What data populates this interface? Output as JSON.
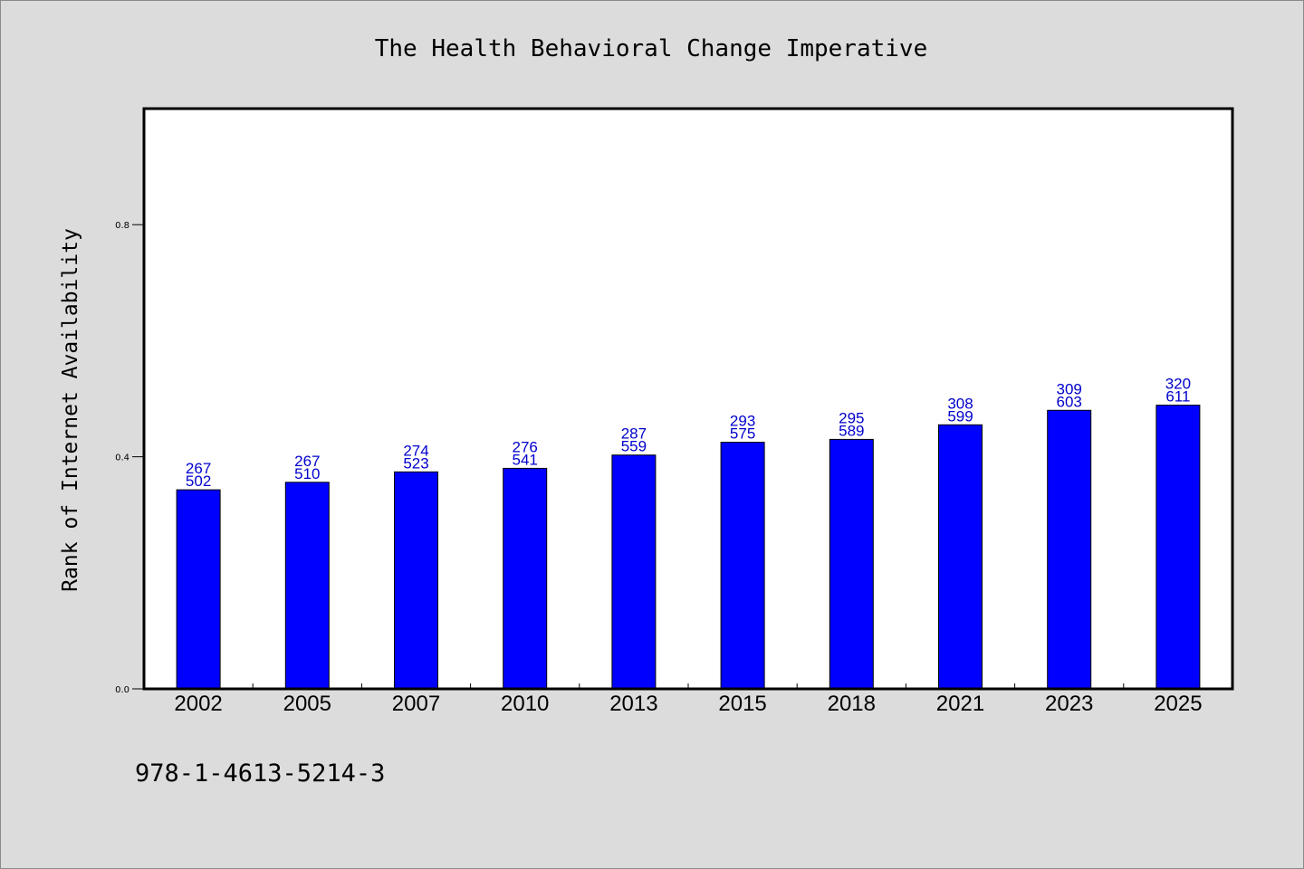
{
  "colors": {
    "background": "#dcdcdc",
    "plot_background": "#ffffff",
    "bar_fill": "#0000ff",
    "data_label": "#0000cc",
    "axis": "#000000"
  },
  "footnote": "978-1-4613-5214-3",
  "chart_data": {
    "type": "bar",
    "title": "The Health Behavioral Change Imperative",
    "xlabel": "",
    "ylabel": "Rank of Internet Availability",
    "ylim": [
      0,
      1.0
    ],
    "yticks": [
      0.0,
      0.4,
      0.8
    ],
    "ytick_labels": [
      "0.0",
      "0.4",
      "0.8"
    ],
    "grid": false,
    "legend": "none",
    "categories": [
      "2002",
      "2005",
      "2007",
      "2010",
      "2013",
      "2015",
      "2018",
      "2021",
      "2023",
      "2025"
    ],
    "values": [
      0.343,
      0.356,
      0.374,
      0.38,
      0.403,
      0.425,
      0.43,
      0.455,
      0.48,
      0.489
    ],
    "data_labels_top": [
      "267",
      "267",
      "274",
      "276",
      "287",
      "293",
      "295",
      "308",
      "309",
      "320"
    ],
    "data_labels_bottom": [
      "502",
      "510",
      "523",
      "541",
      "559",
      "575",
      "589",
      "599",
      "603",
      "611"
    ]
  }
}
